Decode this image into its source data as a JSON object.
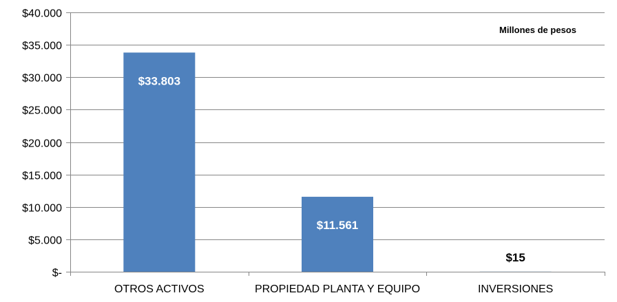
{
  "chart_data": {
    "type": "bar",
    "categories": [
      "OTROS ACTIVOS",
      "PROPIEDAD PLANTA Y EQUIPO",
      "INVERSIONES"
    ],
    "values": [
      33803,
      11561,
      15
    ],
    "data_labels": [
      "$33.803",
      "$11.561",
      "$15"
    ],
    "unit_note": "Millones de pesos",
    "ylim": [
      0,
      40000
    ],
    "yticks": [
      0,
      5000,
      10000,
      15000,
      20000,
      25000,
      30000,
      35000,
      40000
    ],
    "ytick_labels": [
      "$-",
      "$5.000",
      "$10.000",
      "$15.000",
      "$20.000",
      "$25.000",
      "$30.000",
      "$35.000",
      "$40.000"
    ],
    "grid": true,
    "colors": {
      "bar": "#4F81BD",
      "grid": "#868686",
      "axis": "#868686",
      "label_inside": "#ffffff",
      "label_outside": "#000000"
    }
  }
}
